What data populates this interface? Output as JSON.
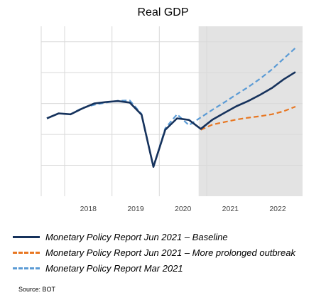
{
  "chart_data": {
    "type": "line",
    "title": "Real GDP",
    "xlabel": "",
    "ylabel": "",
    "x_ticks": [
      "2018",
      "2019",
      "2020",
      "2021",
      "2022"
    ],
    "forecast_shading_start": "2020Q4",
    "grid": "horizontal",
    "legend_position": "bottom",
    "series": [
      {
        "name": "Monetary Policy Report Jun 2021 – Baseline",
        "color": "#16325c",
        "style": "solid",
        "x": [
          "2017Q3",
          "2017Q4",
          "2018Q1",
          "2018Q2",
          "2018Q3",
          "2018Q4",
          "2019Q1",
          "2019Q2",
          "2019Q3",
          "2019Q4",
          "2020Q1",
          "2020Q2",
          "2020Q3",
          "2020Q4",
          "2021Q1",
          "2021Q2",
          "2021Q3",
          "2021Q4",
          "2022Q1",
          "2022Q2",
          "2022Q3",
          "2022Q4"
        ],
        "values": [
          100.2,
          101.8,
          101.5,
          103.4,
          105.0,
          105.5,
          105.8,
          105.3,
          101.4,
          84.5,
          96.5,
          100.2,
          99.7,
          96.8,
          99.8,
          102.0,
          104.1,
          105.8,
          107.8,
          110.0,
          112.8,
          115.2
        ]
      },
      {
        "name": "Monetary Policy Report Jun 2021 – More prolonged outbreak",
        "color": "#e87722",
        "style": "dashed",
        "x": [
          "2020Q4",
          "2021Q1",
          "2021Q2",
          "2021Q3",
          "2021Q4",
          "2022Q1",
          "2022Q2",
          "2022Q3",
          "2022Q4"
        ],
        "values": [
          96.5,
          98.2,
          99.0,
          99.8,
          100.4,
          100.9,
          101.5,
          102.5,
          104.0
        ]
      },
      {
        "name": "Monetary Policy Report Mar 2021",
        "color": "#5b9bd5",
        "style": "dashed",
        "x": [
          "2017Q3",
          "2017Q4",
          "2018Q1",
          "2018Q2",
          "2018Q3",
          "2018Q4",
          "2019Q1",
          "2019Q2",
          "2019Q3",
          "2019Q4",
          "2020Q1",
          "2020Q2",
          "2020Q3",
          "2020Q4",
          "2021Q1",
          "2021Q2",
          "2021Q3",
          "2021Q4",
          "2022Q1",
          "2022Q2",
          "2022Q3",
          "2022Q4"
        ],
        "values": [
          100.2,
          101.8,
          101.5,
          103.6,
          104.6,
          105.3,
          105.9,
          106.0,
          101.6,
          84.5,
          97.0,
          101.5,
          98.0,
          100.5,
          103.0,
          105.4,
          107.9,
          110.3,
          113.0,
          116.0,
          119.5,
          123.0
        ]
      }
    ]
  },
  "legend": [
    {
      "prefix": "Monetary Policy Report",
      "suffix": " Jun 2021 – Baseline",
      "color": "#16325c",
      "style": "solid"
    },
    {
      "prefix": "Monetary Policy Report",
      "suffix": " Jun 2021 – More prolonged outbreak",
      "color": "#e87722",
      "style": "dashed"
    },
    {
      "prefix": "Monetary Policy Report",
      "suffix": " Mar 2021",
      "color": "#5b9bd5",
      "style": "dashed"
    }
  ],
  "source": "Source: BOT",
  "colors": {
    "shading": "#e3e3e3",
    "grid": "#d9d9d9"
  }
}
